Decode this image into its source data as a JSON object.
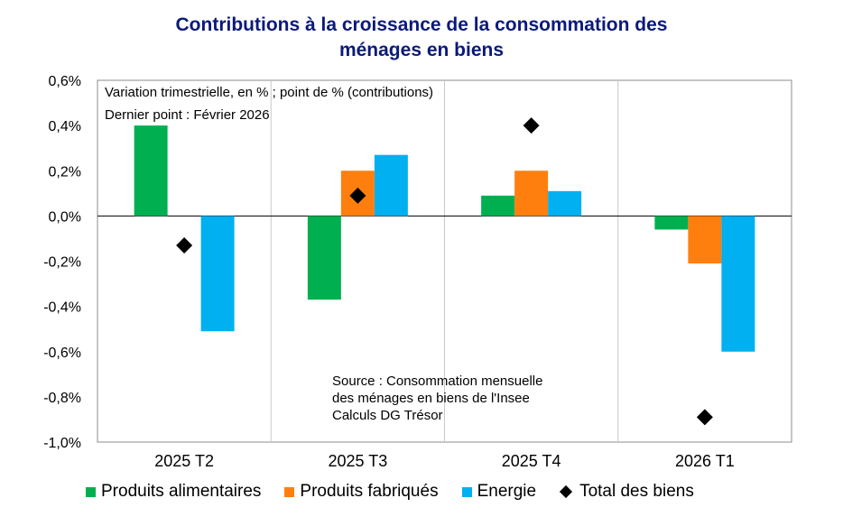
{
  "colors": {
    "title": "#0b1a78",
    "food": "#00b050",
    "manufactured": "#ff7f0e",
    "energy": "#00b0f0",
    "total": "#000000"
  },
  "chart_data": {
    "type": "bar",
    "title": [
      "Contributions à la croissance de la consommation des",
      "ménages en biens"
    ],
    "notes": [
      "Variation trimestrielle, en % ; point de % (contributions)",
      "Dernier point : Février 2026"
    ],
    "source": [
      "Source : Consommation mensuelle",
      "des ménages en biens de l'Insee",
      "Calculs DG Trésor"
    ],
    "categories": [
      "2025 T2",
      "2025 T3",
      "2025 T4",
      "2026 T1"
    ],
    "ylim": [
      -1.0,
      0.6
    ],
    "yticks": [
      {
        "value": 0.6,
        "label": "0,6%"
      },
      {
        "value": 0.4,
        "label": "0,4%"
      },
      {
        "value": 0.2,
        "label": "0,2%"
      },
      {
        "value": 0.0,
        "label": "0,0%"
      },
      {
        "value": -0.2,
        "label": "-0,2%"
      },
      {
        "value": -0.4,
        "label": "-0,4%"
      },
      {
        "value": -0.6,
        "label": "-0,6%"
      },
      {
        "value": -0.8,
        "label": "-0,8%"
      },
      {
        "value": -1.0,
        "label": "-1,0%"
      }
    ],
    "series": [
      {
        "name": "Produits alimentaires",
        "kind": "bar",
        "color": "#00b050",
        "values": [
          0.4,
          -0.37,
          0.09,
          -0.06
        ]
      },
      {
        "name": "Produits fabriqués",
        "kind": "bar",
        "color": "#ff7f0e",
        "values": [
          0.0,
          0.2,
          0.2,
          -0.21
        ]
      },
      {
        "name": "Energie",
        "kind": "bar",
        "color": "#00b0f0",
        "values": [
          -0.51,
          0.27,
          0.11,
          -0.6
        ]
      },
      {
        "name": "Total des biens",
        "kind": "marker",
        "color": "#000000",
        "values": [
          -0.13,
          0.09,
          0.4,
          -0.89
        ]
      }
    ]
  }
}
